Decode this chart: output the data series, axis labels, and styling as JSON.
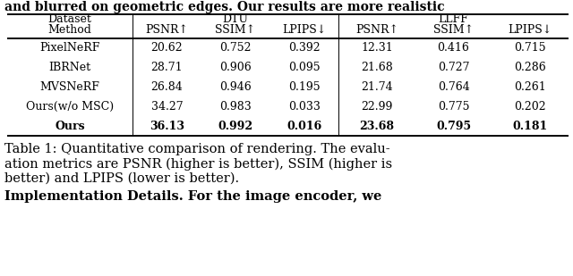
{
  "title_top": "and blurred on geometric edges. Our results are more realistic",
  "caption_line1": "Table 1: Quantitative comparison of rendering. The evalu-",
  "caption_line2": "ation metrics are PSNR (higher is better), SSIM (higher is",
  "caption_line3": "better) and LPIPS (lower is better).",
  "bottom_text": "Implementation Details. For the image encoder, we",
  "col_header_row1_left": "Dataset",
  "col_header_row1_dtu": "DTU",
  "col_header_row1_llff": "LLFF",
  "col_header_row2": [
    "Method",
    "PSNR↑",
    "SSIM↑",
    "LPIPS↓",
    "PSNR↑",
    "SSIM↑",
    "LPIPS↓"
  ],
  "rows": [
    [
      "PixelNeRF",
      "20.62",
      "0.752",
      "0.392",
      "12.31",
      "0.416",
      "0.715"
    ],
    [
      "IBRNet",
      "28.71",
      "0.906",
      "0.095",
      "21.68",
      "0.727",
      "0.286"
    ],
    [
      "MVSNeRF",
      "26.84",
      "0.946",
      "0.195",
      "21.74",
      "0.764",
      "0.261"
    ],
    [
      "Ours(w/o MSC)",
      "34.27",
      "0.983",
      "0.033",
      "22.99",
      "0.775",
      "0.202"
    ],
    [
      "Ours",
      "36.13",
      "0.992",
      "0.016",
      "23.68",
      "0.795",
      "0.181"
    ]
  ],
  "bold_row": 4,
  "background_color": "#ffffff",
  "text_color": "#000000",
  "table_fs": 9.0,
  "caption_fs": 10.5,
  "title_fs": 10.0
}
